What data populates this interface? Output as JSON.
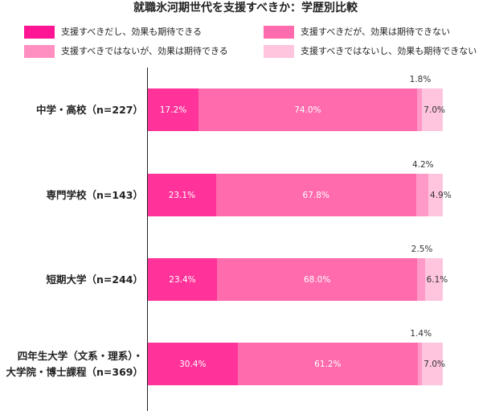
{
  "chart_data": {
    "type": "bar",
    "orientation": "horizontal",
    "stacked": true,
    "title": "就職氷河期世代を支援すべきか：学歴別比較",
    "categories": [
      [
        "中学・高校（n=227）"
      ],
      [
        "専門学校（n=143）"
      ],
      [
        "短期大学（n=244）"
      ],
      [
        "四年生大学（文系・理系）・",
        "大学院・博士課程（n=369）"
      ]
    ],
    "series": [
      {
        "name": "支援すべきだし、効果も期待できる",
        "color": "#FF3399",
        "values": [
          17.2,
          23.1,
          23.4,
          30.4
        ]
      },
      {
        "name": "支援すべきだが、効果は期待できない",
        "color": "#FF6BAD",
        "values": [
          74.0,
          67.8,
          68.0,
          61.2
        ]
      },
      {
        "name": "支援すべきではないが、効果は期待できる",
        "color": "#FF99C8",
        "values": [
          1.8,
          4.2,
          2.5,
          1.4
        ]
      },
      {
        "name": "支援すべきではないし、効果も期待できない",
        "color": "#FFC4DE",
        "values": [
          7.0,
          4.9,
          6.1,
          7.0
        ]
      }
    ],
    "value_suffix": "%",
    "xlim": [
      0,
      100
    ],
    "grid": false,
    "legend_position": "top"
  },
  "colors": {
    "legend_swatches": [
      "#FF1493",
      "#FF6BAD",
      "#FF8FC0",
      "#FFC4DE"
    ],
    "inside_label": "#ffffff",
    "outside_label": "#333333"
  }
}
